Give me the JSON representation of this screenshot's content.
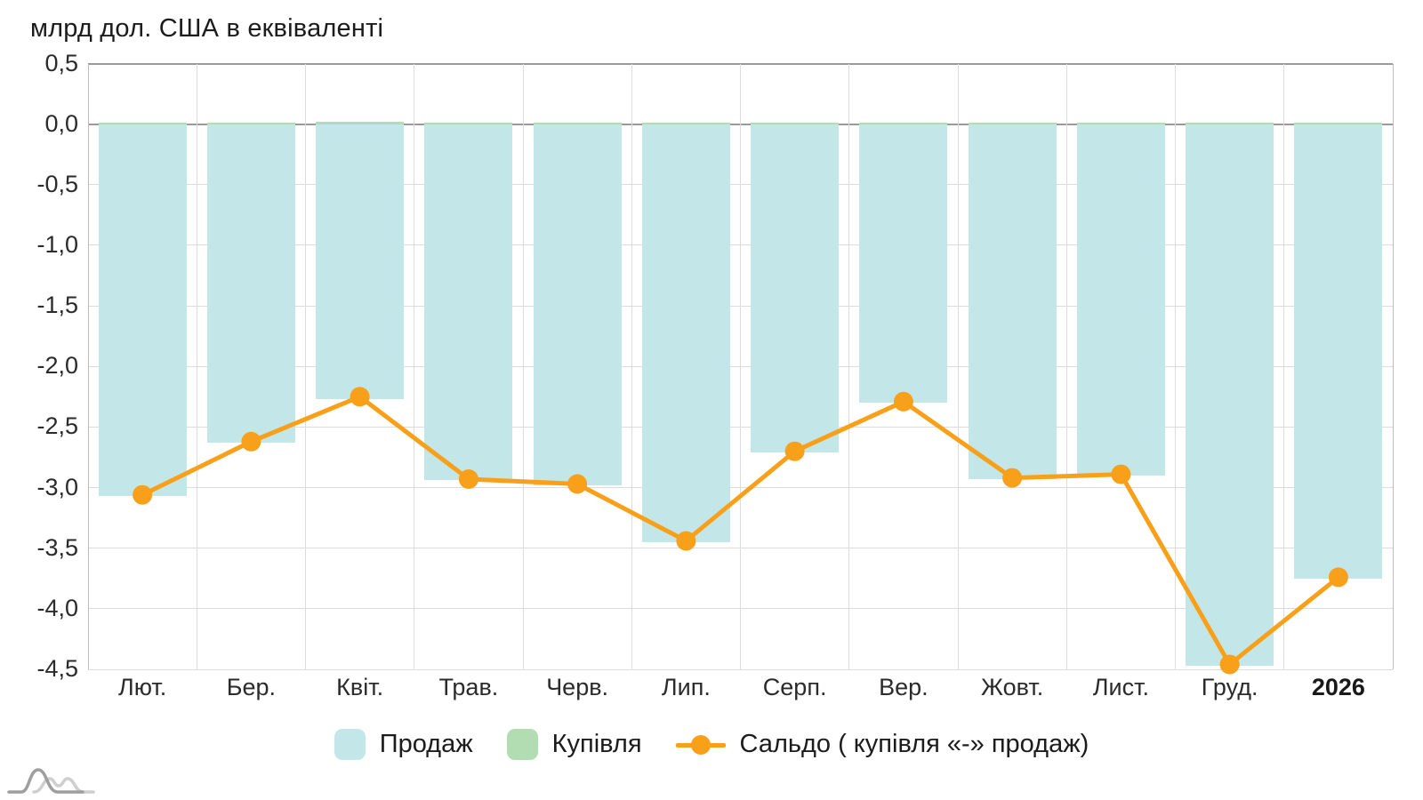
{
  "title": "млрд дол. США в еквіваленті",
  "legend": {
    "prodazh": "Продаж",
    "kupivlya": "Купівля",
    "saldo": "Сальдо ( купівля «-» продаж)"
  },
  "colors": {
    "prodazh": "#c3e7e8",
    "kupivlya": "#b2dcb2",
    "saldo": "#F9A01B",
    "grid": "#dcdcdc",
    "axis": "#9a9a9a",
    "text": "#2b2b2b"
  },
  "chart_data": {
    "type": "bar",
    "title": "млрд дол. США в еквіваленті",
    "categories": [
      "Лют.",
      "Бер.",
      "Квіт.",
      "Трав.",
      "Черв.",
      "Лип.",
      "Серп.",
      "Вер.",
      "Жовт.",
      "Лист.",
      "Груд.",
      "2026"
    ],
    "highlight_category": "2026",
    "series": [
      {
        "name": "Продаж",
        "type": "bar",
        "color": "#c3e7e8",
        "values": [
          -3.07,
          -2.63,
          -2.27,
          -2.94,
          -2.98,
          -3.45,
          -2.71,
          -2.3,
          -2.93,
          -2.9,
          -4.47,
          -3.75
        ]
      },
      {
        "name": "Купівля",
        "type": "bar",
        "color": "#b2dcb2",
        "values": [
          0.01,
          0.01,
          0.02,
          0.01,
          0.01,
          0.01,
          0.01,
          0.01,
          0.01,
          0.01,
          0.01,
          0.01
        ]
      },
      {
        "name": "Сальдо ( купівля «-» продаж)",
        "type": "line",
        "color": "#F9A01B",
        "values": [
          -3.06,
          -2.62,
          -2.25,
          -2.93,
          -2.97,
          -3.44,
          -2.7,
          -2.29,
          -2.92,
          -2.89,
          -4.46,
          -3.74
        ]
      }
    ],
    "ylabel": "млрд дол. США в еквіваленті",
    "xlabel": "",
    "ylim": [
      -4.5,
      0.5
    ],
    "ytick_values": [
      0.5,
      0.0,
      -0.5,
      -1.0,
      -1.5,
      -2.0,
      -2.5,
      -3.0,
      -3.5,
      -4.0,
      -4.5
    ],
    "ytick_labels": [
      "0,5",
      "0,0",
      "-0,5",
      "-1,0",
      "-1,5",
      "-2,0",
      "-2,5",
      "-3,0",
      "-3,5",
      "-4,0",
      "-4,5"
    ],
    "grid": true,
    "legend_position": "bottom"
  }
}
